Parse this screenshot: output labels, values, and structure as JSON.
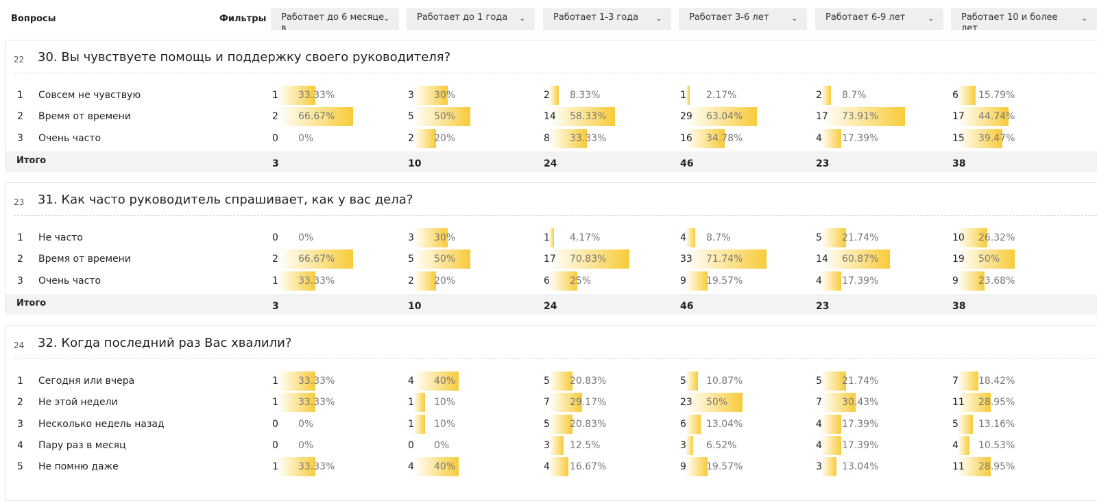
{
  "header": {
    "questions_label": "Вопросы",
    "filters_label": "Фильтры",
    "filters": [
      {
        "label": "Работает до 6 месяце в",
        "icon": "chevron-down-icon"
      },
      {
        "label": "Работает до 1 года",
        "icon": "chevron-down-icon"
      },
      {
        "label": "Работает 1-3 года",
        "icon": "chevron-down-icon"
      },
      {
        "label": "Работает 3-6 лет",
        "icon": "chevron-down-icon"
      },
      {
        "label": "Работает 6-9 лет",
        "icon": "chevron-down-icon"
      },
      {
        "label": "Работает 10 и более лет",
        "icon": "chevron-down-icon"
      }
    ]
  },
  "total_label": "Итого",
  "accent_color": "#f8cb3a",
  "sections": [
    {
      "number": "22",
      "title": "30. Вы чувствуете помощь и поддержку своего руководителя?",
      "rows": [
        {
          "n": "1",
          "label": "Совсем не чувствую",
          "cells": [
            [
              "1",
              "33.33%"
            ],
            [
              "3",
              "30%"
            ],
            [
              "2",
              "8.33%"
            ],
            [
              "1",
              "2.17%"
            ],
            [
              "2",
              "8.7%"
            ],
            [
              "6",
              "15.79%"
            ]
          ]
        },
        {
          "n": "2",
          "label": "Время от времени",
          "cells": [
            [
              "2",
              "66.67%"
            ],
            [
              "5",
              "50%"
            ],
            [
              "14",
              "58.33%"
            ],
            [
              "29",
              "63.04%"
            ],
            [
              "17",
              "73.91%"
            ],
            [
              "17",
              "44.74%"
            ]
          ]
        },
        {
          "n": "3",
          "label": "Очень часто",
          "cells": [
            [
              "0",
              "0%"
            ],
            [
              "2",
              "20%"
            ],
            [
              "8",
              "33.33%"
            ],
            [
              "16",
              "34.78%"
            ],
            [
              "4",
              "17.39%"
            ],
            [
              "15",
              "39.47%"
            ]
          ]
        }
      ],
      "totals": [
        "3",
        "10",
        "24",
        "46",
        "23",
        "38"
      ]
    },
    {
      "number": "23",
      "title": "31. Как часто руководитель спрашивает, как у вас дела?",
      "rows": [
        {
          "n": "1",
          "label": "Не часто",
          "cells": [
            [
              "0",
              "0%"
            ],
            [
              "3",
              "30%"
            ],
            [
              "1",
              "4.17%"
            ],
            [
              "4",
              "8.7%"
            ],
            [
              "5",
              "21.74%"
            ],
            [
              "10",
              "26.32%"
            ]
          ]
        },
        {
          "n": "2",
          "label": "Время от времени",
          "cells": [
            [
              "2",
              "66.67%"
            ],
            [
              "5",
              "50%"
            ],
            [
              "17",
              "70.83%"
            ],
            [
              "33",
              "71.74%"
            ],
            [
              "14",
              "60.87%"
            ],
            [
              "19",
              "50%"
            ]
          ]
        },
        {
          "n": "3",
          "label": "Очень часто",
          "cells": [
            [
              "1",
              "33.33%"
            ],
            [
              "2",
              "20%"
            ],
            [
              "6",
              "25%"
            ],
            [
              "9",
              "19.57%"
            ],
            [
              "4",
              "17.39%"
            ],
            [
              "9",
              "23.68%"
            ]
          ]
        }
      ],
      "totals": [
        "3",
        "10",
        "24",
        "46",
        "23",
        "38"
      ]
    },
    {
      "number": "24",
      "title": "32. Когда последний раз Вас хвалили?",
      "rows": [
        {
          "n": "1",
          "label": "Сегодня или вчера",
          "cells": [
            [
              "1",
              "33.33%"
            ],
            [
              "4",
              "40%"
            ],
            [
              "5",
              "20.83%"
            ],
            [
              "5",
              "10.87%"
            ],
            [
              "5",
              "21.74%"
            ],
            [
              "7",
              "18.42%"
            ]
          ]
        },
        {
          "n": "2",
          "label": "Не этой недели",
          "cells": [
            [
              "1",
              "33.33%"
            ],
            [
              "1",
              "10%"
            ],
            [
              "7",
              "29.17%"
            ],
            [
              "23",
              "50%"
            ],
            [
              "7",
              "30.43%"
            ],
            [
              "11",
              "28.95%"
            ]
          ]
        },
        {
          "n": "3",
          "label": "Несколько недель назад",
          "cells": [
            [
              "0",
              "0%"
            ],
            [
              "1",
              "10%"
            ],
            [
              "5",
              "20.83%"
            ],
            [
              "6",
              "13.04%"
            ],
            [
              "4",
              "17.39%"
            ],
            [
              "5",
              "13.16%"
            ]
          ]
        },
        {
          "n": "4",
          "label": "Пару раз в месяц",
          "cells": [
            [
              "0",
              "0%"
            ],
            [
              "0",
              "0%"
            ],
            [
              "3",
              "12.5%"
            ],
            [
              "3",
              "6.52%"
            ],
            [
              "4",
              "17.39%"
            ],
            [
              "4",
              "10.53%"
            ]
          ]
        },
        {
          "n": "5",
          "label": "Не помню даже",
          "cells": [
            [
              "1",
              "33.33%"
            ],
            [
              "4",
              "40%"
            ],
            [
              "4",
              "16.67%"
            ],
            [
              "9",
              "19.57%"
            ],
            [
              "3",
              "13.04%"
            ],
            [
              "11",
              "28.95%"
            ]
          ]
        }
      ],
      "totals": []
    }
  ]
}
